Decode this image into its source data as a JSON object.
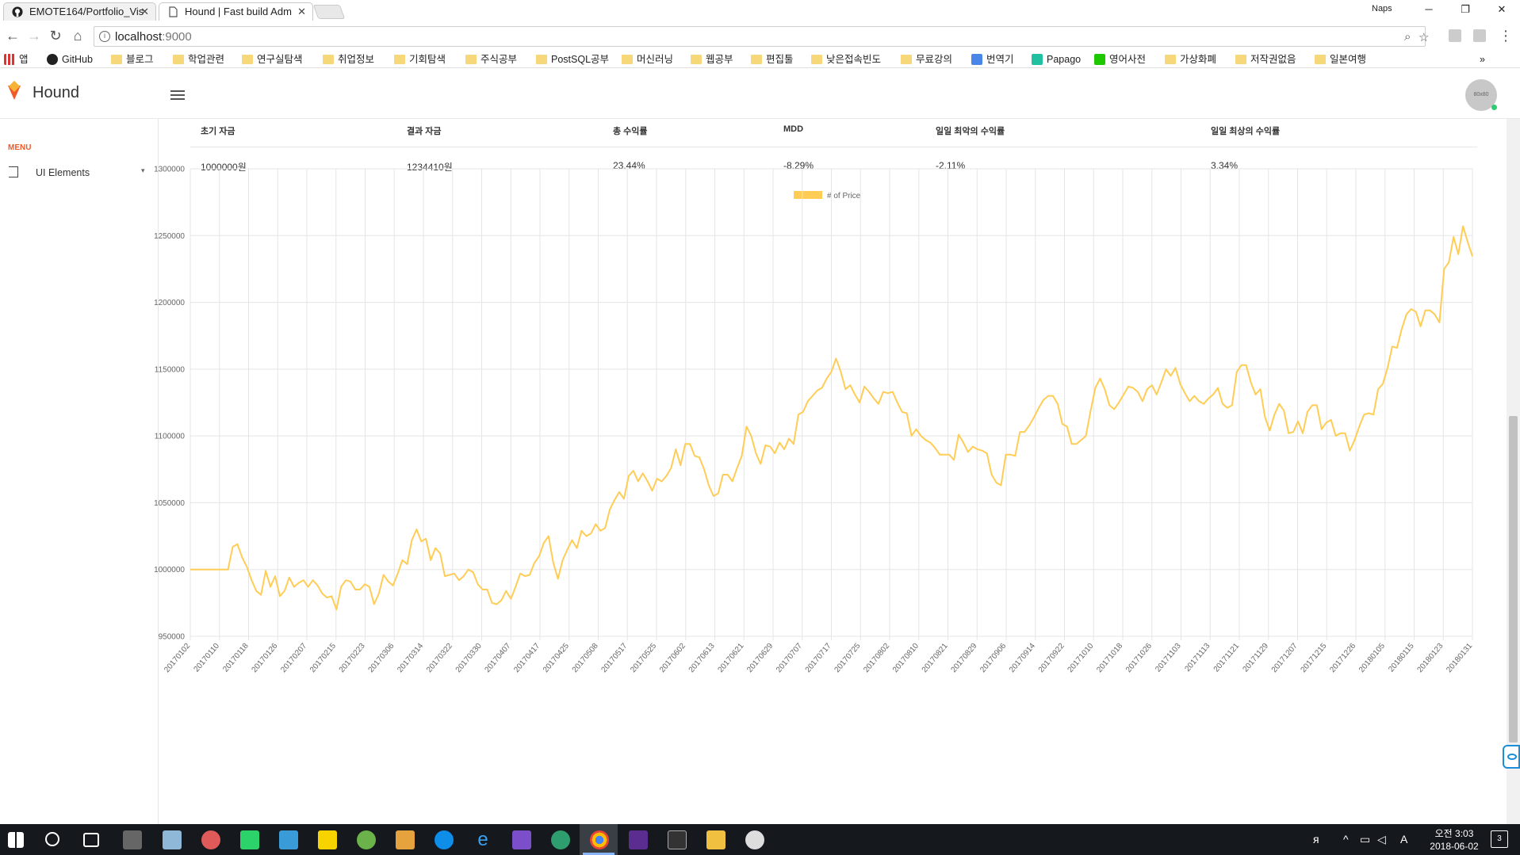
{
  "browser": {
    "tabs": [
      {
        "title": "EMOTE164/Portfolio_Vis",
        "active": false
      },
      {
        "title": "Hound | Fast build Adm",
        "active": true
      }
    ],
    "titlebar_tag": "Naps",
    "url_host": "localhost",
    "url_port": ":9000",
    "bookmarks": [
      "앱",
      "GitHub",
      "블로그",
      "학업관련",
      "연구실탐색",
      "취업정보",
      "기회탐색",
      "주식공부",
      "PostSQL공부",
      "머신러닝",
      "웹공부",
      "편집툴",
      "낮은접속빈도",
      "무료강의",
      "번역기",
      "Papago",
      "영어사전",
      "가상화폐",
      "저작권없음",
      "일본여행"
    ],
    "bookmarks_more": "»"
  },
  "app": {
    "brand": "Hound",
    "avatar_text": "80x80",
    "menu_label": "MENU",
    "menu_items": [
      {
        "label": "UI Elements"
      }
    ]
  },
  "summary": {
    "headers": [
      "초기 자금",
      "결과 자금",
      "총 수익률",
      "MDD",
      "일일 최악의 수익률",
      "일일 최상의 수익률"
    ],
    "values": [
      "1000000원",
      "1234410원",
      "23.44%",
      "-8.29%",
      "-2.11%",
      "3.34%"
    ]
  },
  "chart_data": {
    "type": "line",
    "legend": "# of Price",
    "legend_position": "top",
    "color": "#ffcd56",
    "grid": true,
    "ylim": [
      950000,
      1300000
    ],
    "y_ticks": [
      950000,
      1000000,
      1050000,
      1100000,
      1150000,
      1200000,
      1250000,
      1300000
    ],
    "x_tick_labels": [
      "20170102",
      "20170110",
      "20170118",
      "20170126",
      "20170207",
      "20170215",
      "20170223",
      "20170306",
      "20170314",
      "20170322",
      "20170330",
      "20170407",
      "20170417",
      "20170425",
      "20170508",
      "20170517",
      "20170525",
      "20170602",
      "20170613",
      "20170621",
      "20170629",
      "20170707",
      "20170717",
      "20170725",
      "20170802",
      "20170810",
      "20170821",
      "20170829",
      "20170906",
      "20170914",
      "20170922",
      "20171010",
      "20171018",
      "20171026",
      "20171103",
      "20171113",
      "20171121",
      "20171129",
      "20171207",
      "20171215",
      "20171226",
      "20180105",
      "20180115",
      "20180123",
      "20180131"
    ],
    "series": [
      {
        "name": "# of Price",
        "values": [
          1000000,
          1000000,
          1000000,
          1000000,
          1000000,
          1000000,
          1000000,
          1000000,
          1000000,
          1017000,
          1019000,
          1009000,
          1002000,
          992000,
          984000,
          981000,
          999000,
          987000,
          995000,
          980000,
          984000,
          994000,
          987000,
          990000,
          992000,
          987000,
          992000,
          988000,
          982000,
          979000,
          980000,
          970000,
          987000,
          992000,
          991000,
          985000,
          985000,
          989000,
          987000,
          974000,
          982000,
          996000,
          991000,
          988000,
          997000,
          1007000,
          1004000,
          1022000,
          1030000,
          1021000,
          1023000,
          1007000,
          1016000,
          1012000,
          995000,
          996000,
          997000,
          992000,
          995000,
          1000000,
          998000,
          989000,
          985000,
          985000,
          975000,
          974000,
          977000,
          984000,
          978000,
          987000,
          997000,
          995000,
          996000,
          1005000,
          1010000,
          1020000,
          1025000,
          1005000,
          993000,
          1007000,
          1015000,
          1022000,
          1016000,
          1029000,
          1025000,
          1027000,
          1034000,
          1029000,
          1031000,
          1045000,
          1052000,
          1058000,
          1053000,
          1070000,
          1074000,
          1066000,
          1072000,
          1066000,
          1059000,
          1068000,
          1066000,
          1070000,
          1076000,
          1090000,
          1078000,
          1094000,
          1094000,
          1085000,
          1084000,
          1075000,
          1063000,
          1055000,
          1057000,
          1071000,
          1071000,
          1066000,
          1076000,
          1085000,
          1107000,
          1100000,
          1087000,
          1079000,
          1093000,
          1092000,
          1087000,
          1095000,
          1090000,
          1098000,
          1094000,
          1116000,
          1118000,
          1126000,
          1130000,
          1134000,
          1136000,
          1143000,
          1148000,
          1158000,
          1148000,
          1135000,
          1138000,
          1131000,
          1125000,
          1137000,
          1133000,
          1128000,
          1124000,
          1133000,
          1132000,
          1133000,
          1125000,
          1118000,
          1117000,
          1100000,
          1105000,
          1100000,
          1097000,
          1095000,
          1091000,
          1086000,
          1086000,
          1086000,
          1082000,
          1101000,
          1095000,
          1088000,
          1092000,
          1090000,
          1089000,
          1087000,
          1071000,
          1065000,
          1063000,
          1086000,
          1086000,
          1085000,
          1103000,
          1103000,
          1108000,
          1114000,
          1121000,
          1127000,
          1130000,
          1130000,
          1124000,
          1109000,
          1107000,
          1094000,
          1094000,
          1097000,
          1100000,
          1119000,
          1136000,
          1143000,
          1135000,
          1123000,
          1120000,
          1125000,
          1131000,
          1137000,
          1136000,
          1133000,
          1126000,
          1135000,
          1138000,
          1131000,
          1140000,
          1150000,
          1145000,
          1151000,
          1139000,
          1132000,
          1126000,
          1130000,
          1126000,
          1124000,
          1128000,
          1131000,
          1136000,
          1124000,
          1121000,
          1123000,
          1148000,
          1153000,
          1153000,
          1140000,
          1131000,
          1135000,
          1114000,
          1104000,
          1116000,
          1124000,
          1119000,
          1102000,
          1103000,
          1111000,
          1102000,
          1118000,
          1123000,
          1123000,
          1105000,
          1110000,
          1112000,
          1100000,
          1102000,
          1102000,
          1089000,
          1097000,
          1107000,
          1116000,
          1117000,
          1116000,
          1135000,
          1139000,
          1151000,
          1167000,
          1166000,
          1180000,
          1191000,
          1195000,
          1193000,
          1182000,
          1194000,
          1194000,
          1191000,
          1185000,
          1225000,
          1230000,
          1249000,
          1236000,
          1257000,
          1245000,
          1234410
        ]
      }
    ]
  }
}
